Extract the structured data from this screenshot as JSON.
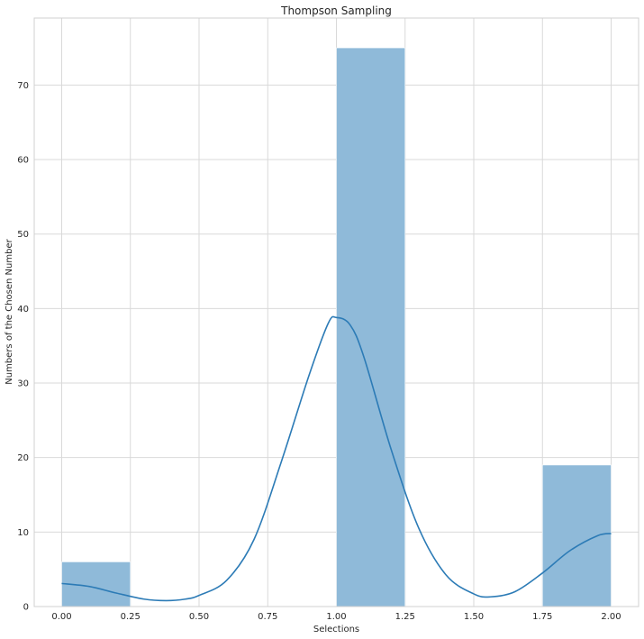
{
  "chart_data": {
    "type": "bar",
    "title": "Thompson Sampling",
    "xlabel": "Selections",
    "ylabel": "Numbers of the Chosen Number",
    "xlim": [
      -0.1,
      2.1
    ],
    "ylim": [
      0,
      79
    ],
    "grid": true,
    "x_ticks": [
      "0.00",
      "0.25",
      "0.50",
      "0.75",
      "1.00",
      "1.25",
      "1.50",
      "1.75",
      "2.00"
    ],
    "y_ticks": [
      "0",
      "10",
      "20",
      "30",
      "40",
      "50",
      "60",
      "70"
    ],
    "bins": [
      {
        "start": 0.0,
        "end": 0.25,
        "value": 6
      },
      {
        "start": 0.25,
        "end": 0.5,
        "value": 0
      },
      {
        "start": 0.5,
        "end": 0.75,
        "value": 0
      },
      {
        "start": 0.75,
        "end": 1.0,
        "value": 0
      },
      {
        "start": 1.0,
        "end": 1.25,
        "value": 75
      },
      {
        "start": 1.25,
        "end": 1.5,
        "value": 0
      },
      {
        "start": 1.5,
        "end": 1.75,
        "value": 0
      },
      {
        "start": 1.75,
        "end": 2.0,
        "value": 19
      }
    ],
    "kde": [
      [
        0.0,
        3.1
      ],
      [
        0.1,
        2.7
      ],
      [
        0.2,
        1.8
      ],
      [
        0.3,
        1.0
      ],
      [
        0.38,
        0.8
      ],
      [
        0.45,
        1.0
      ],
      [
        0.5,
        1.5
      ],
      [
        0.6,
        3.5
      ],
      [
        0.7,
        9.0
      ],
      [
        0.8,
        19.5
      ],
      [
        0.9,
        31.0
      ],
      [
        0.97,
        38.0
      ],
      [
        1.0,
        38.8
      ],
      [
        1.05,
        37.8
      ],
      [
        1.1,
        33.5
      ],
      [
        1.2,
        21.0
      ],
      [
        1.3,
        10.5
      ],
      [
        1.4,
        4.2
      ],
      [
        1.5,
        1.7
      ],
      [
        1.56,
        1.3
      ],
      [
        1.65,
        2.0
      ],
      [
        1.75,
        4.5
      ],
      [
        1.85,
        7.5
      ],
      [
        1.95,
        9.5
      ],
      [
        2.0,
        9.8
      ]
    ],
    "colors": {
      "bar": "#8fbad9",
      "kde": "#2c7bb6"
    }
  }
}
